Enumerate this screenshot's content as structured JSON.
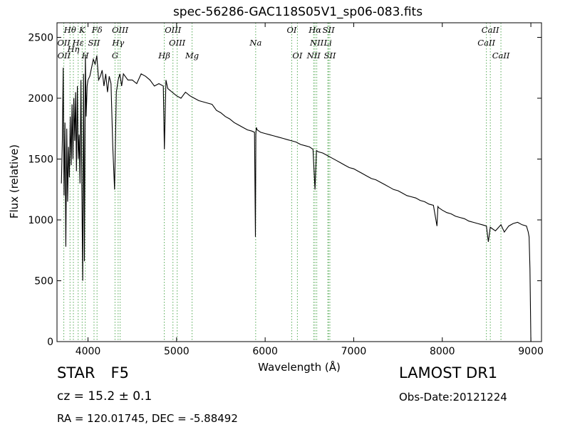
{
  "chart_data": {
    "type": "line",
    "title": "spec-56286-GAC118S05V1_sp06-083.fits",
    "xlabel": "Wavelength (Å)",
    "ylabel": "Flux (relative)",
    "xlim": [
      3650,
      9120
    ],
    "ylim": [
      0,
      2620
    ],
    "xticks": [
      4000,
      5000,
      6000,
      7000,
      8000,
      9000
    ],
    "yticks": [
      0,
      500,
      1000,
      1500,
      2000,
      2500
    ],
    "grid": false,
    "line_color": "#000000",
    "series": [
      {
        "x": [
          3700,
          3710,
          3720,
          3730,
          3740,
          3750,
          3760,
          3770,
          3780,
          3790,
          3800,
          3810,
          3820,
          3830,
          3840,
          3850,
          3860,
          3870,
          3880,
          3890,
          3900,
          3910,
          3920,
          3930,
          3940,
          3950,
          3960,
          3970,
          3980,
          3990,
          4000,
          4020,
          4040,
          4060,
          4080,
          4100,
          4120,
          4140,
          4160,
          4180,
          4200,
          4220,
          4240,
          4260,
          4280,
          4300,
          4320,
          4340,
          4360,
          4380,
          4400,
          4450,
          4500,
          4550,
          4600,
          4650,
          4700,
          4750,
          4800,
          4850,
          4862,
          4880,
          4900,
          4950,
          5000,
          5050,
          5100,
          5150,
          5200,
          5250,
          5300,
          5350,
          5400,
          5450,
          5500,
          5550,
          5600,
          5650,
          5700,
          5750,
          5800,
          5850,
          5880,
          5890,
          5895,
          5900,
          5910,
          5950,
          6000,
          6050,
          6100,
          6150,
          6200,
          6250,
          6300,
          6350,
          6400,
          6450,
          6500,
          6540,
          6563,
          6580,
          6600,
          6650,
          6700,
          6750,
          6800,
          6850,
          6900,
          6950,
          7000,
          7050,
          7100,
          7150,
          7200,
          7250,
          7300,
          7350,
          7400,
          7450,
          7500,
          7550,
          7600,
          7650,
          7700,
          7750,
          7800,
          7850,
          7900,
          7940,
          7950,
          7960,
          8000,
          8050,
          8100,
          8150,
          8200,
          8250,
          8300,
          8350,
          8400,
          8450,
          8498,
          8520,
          8542,
          8560,
          8600,
          8662,
          8700,
          8750,
          8800,
          8850,
          8900,
          8950,
          8970,
          8980,
          8990,
          9000,
          9010
        ],
        "y": [
          1300,
          1650,
          2250,
          1200,
          1800,
          780,
          1750,
          1150,
          1600,
          1350,
          1850,
          1450,
          1950,
          1500,
          2000,
          1650,
          2050,
          1400,
          2100,
          1500,
          1700,
          1300,
          2150,
          1300,
          500,
          2200,
          660,
          2350,
          1850,
          2100,
          2150,
          2180,
          2250,
          2320,
          2280,
          2350,
          2150,
          2180,
          2230,
          2100,
          2200,
          2050,
          2180,
          2120,
          1600,
          1250,
          2050,
          2150,
          2200,
          2100,
          2200,
          2150,
          2150,
          2120,
          2200,
          2180,
          2150,
          2100,
          2120,
          2100,
          1580,
          2150,
          2080,
          2050,
          2020,
          2000,
          2050,
          2020,
          2000,
          1980,
          1970,
          1960,
          1950,
          1900,
          1880,
          1850,
          1830,
          1800,
          1780,
          1760,
          1740,
          1730,
          1720,
          860,
          1700,
          1760,
          1740,
          1720,
          1710,
          1700,
          1690,
          1680,
          1670,
          1660,
          1650,
          1640,
          1620,
          1610,
          1600,
          1580,
          1250,
          1570,
          1560,
          1550,
          1530,
          1510,
          1490,
          1470,
          1450,
          1430,
          1420,
          1400,
          1380,
          1360,
          1340,
          1330,
          1310,
          1290,
          1270,
          1250,
          1240,
          1220,
          1200,
          1190,
          1180,
          1160,
          1150,
          1130,
          1120,
          950,
          1110,
          1100,
          1080,
          1060,
          1050,
          1030,
          1020,
          1010,
          990,
          980,
          970,
          960,
          950,
          820,
          940,
          930,
          910,
          960,
          900,
          950,
          970,
          980,
          960,
          950,
          900,
          860,
          600,
          0,
          0
        ]
      }
    ],
    "line_labels": [
      {
        "text": "Hθ",
        "x": 3797,
        "row": 1
      },
      {
        "text": "K",
        "x": 3934,
        "row": 1
      },
      {
        "text": "Fδ",
        "x": 4102,
        "row": 1
      },
      {
        "text": "OIII",
        "x": 4363,
        "row": 1
      },
      {
        "text": "OIII",
        "x": 4959,
        "row": 1
      },
      {
        "text": "OI",
        "x": 6300,
        "row": 1
      },
      {
        "text": "Hα",
        "x": 6563,
        "row": 1
      },
      {
        "text": "SII",
        "x": 6716,
        "row": 1
      },
      {
        "text": "CaII",
        "x": 8542,
        "row": 1
      },
      {
        "text": "OII",
        "x": 3727,
        "row": 2
      },
      {
        "text": "Hε",
        "x": 3889,
        "row": 2
      },
      {
        "text": "SII",
        "x": 4068,
        "row": 2
      },
      {
        "text": "Hγ",
        "x": 4340,
        "row": 2
      },
      {
        "text": "NII",
        "x": 6583,
        "row": 2
      },
      {
        "text": "Li",
        "x": 6708,
        "row": 2
      },
      {
        "text": "CaII",
        "x": 8498,
        "row": 2
      },
      {
        "text": "Hη",
        "x": 3835,
        "row": 2.5
      },
      {
        "text": "OII",
        "x": 3729,
        "row": 3
      },
      {
        "text": "H",
        "x": 3969,
        "row": 3
      },
      {
        "text": "G",
        "x": 4305,
        "row": 3
      },
      {
        "text": "Hβ",
        "x": 4861,
        "row": 3
      },
      {
        "text": "OIII",
        "x": 5007,
        "row": 2
      },
      {
        "text": "Mg",
        "x": 5175,
        "row": 3
      },
      {
        "text": "Na",
        "x": 5893,
        "row": 2
      },
      {
        "text": "OI",
        "x": 6364,
        "row": 3
      },
      {
        "text": "NII",
        "x": 6548,
        "row": 3
      },
      {
        "text": "SII",
        "x": 6731,
        "row": 3
      },
      {
        "text": "CaII",
        "x": 8662,
        "row": 3
      }
    ],
    "line_marker_color": "#55aa55"
  },
  "footer": {
    "object_class": "STAR",
    "subclass": "F5",
    "survey": "LAMOST DR1",
    "redshift": "cz = 15.2 ± 0.1",
    "obs_date": "Obs-Date:20121224",
    "coords": "RA = 120.01745, DEC = -5.88492"
  }
}
